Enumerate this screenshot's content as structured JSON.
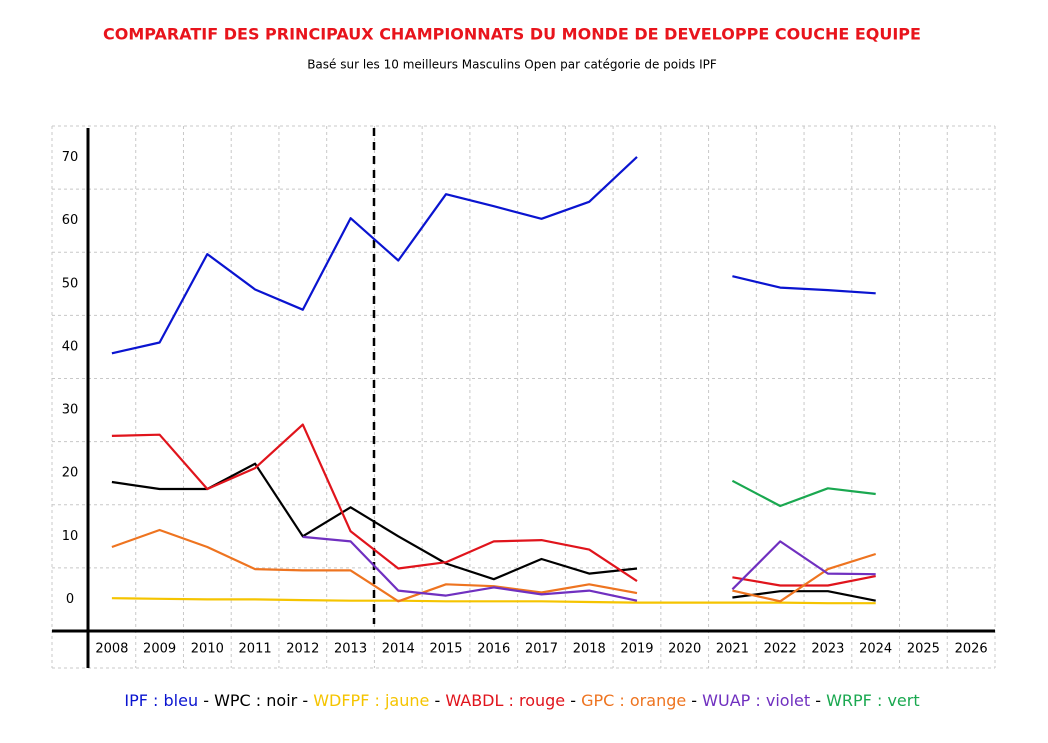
{
  "chart_data": {
    "type": "line",
    "title": "COMPARATIF DES  PRINCIPAUX CHAMPIONNATS DU MONDE DE DEVELOPPE COUCHE EQUIPE",
    "subtitle": "Basé sur les 10 meilleurs Masculins Open par catégorie de poids IPF",
    "categories": [
      "2008",
      "2009",
      "2010",
      "2011",
      "2012",
      "2013",
      "2014",
      "2015",
      "2016",
      "2017",
      "2018",
      "2019",
      "2020",
      "2021",
      "2022",
      "2023",
      "2024",
      "2025",
      "2026"
    ],
    "ylim": [
      -5,
      75
    ],
    "yticks": [
      0,
      10,
      20,
      30,
      40,
      50,
      60,
      70
    ],
    "grid": true,
    "legend_separator": "-",
    "series": [
      {
        "name": "IPF : bleu",
        "color": "#0a14d0",
        "values": [
          39,
          40.7,
          54.7,
          49.1,
          45.9,
          60.4,
          53.7,
          64.2,
          62.3,
          60.3,
          63,
          70.1,
          null,
          51.2,
          49.4,
          49,
          48.5,
          null,
          null
        ]
      },
      {
        "name": "WPC : noir",
        "color": "#000000",
        "values": [
          18.6,
          17.5,
          17.5,
          21.5,
          10,
          14.6,
          10,
          5.7,
          3.2,
          6.4,
          4.1,
          4.9,
          null,
          0.3,
          1.3,
          1.3,
          -0.2,
          null,
          null
        ]
      },
      {
        "name": "WDFPF : jaune",
        "color": "#f5c400",
        "values": [
          0.2,
          0.1,
          0,
          0,
          -0.1,
          -0.2,
          -0.2,
          -0.3,
          -0.3,
          -0.3,
          -0.4,
          -0.5,
          -0.5,
          -0.5,
          -0.5,
          -0.6,
          -0.6,
          null,
          null
        ]
      },
      {
        "name": "WABDL : rouge",
        "color": "#e0141c",
        "values": [
          25.9,
          26.1,
          17.5,
          20.8,
          27.7,
          10.8,
          4.9,
          5.9,
          9.2,
          9.4,
          7.9,
          2.9,
          null,
          3.5,
          2.2,
          2.2,
          3.7,
          null,
          null
        ]
      },
      {
        "name": "GPC : orange",
        "color": "#ee7420",
        "values": [
          8.3,
          11,
          8.3,
          4.8,
          4.6,
          4.6,
          -0.3,
          2.4,
          2.1,
          1.1,
          2.4,
          1,
          null,
          1.4,
          -0.3,
          4.8,
          7.2,
          null,
          null
        ]
      },
      {
        "name": "WUAP : violet",
        "color": "#7030c0",
        "values": [
          null,
          null,
          null,
          null,
          9.9,
          9.2,
          1.4,
          0.6,
          1.9,
          0.8,
          1.4,
          -0.2,
          null,
          1.6,
          9.2,
          4.1,
          4,
          null,
          null
        ]
      },
      {
        "name": "WRPF : vert",
        "color": "#1aa850",
        "values": [
          null,
          null,
          null,
          null,
          null,
          null,
          null,
          null,
          null,
          null,
          null,
          null,
          null,
          18.8,
          14.8,
          17.6,
          16.7,
          null,
          null
        ]
      }
    ]
  }
}
